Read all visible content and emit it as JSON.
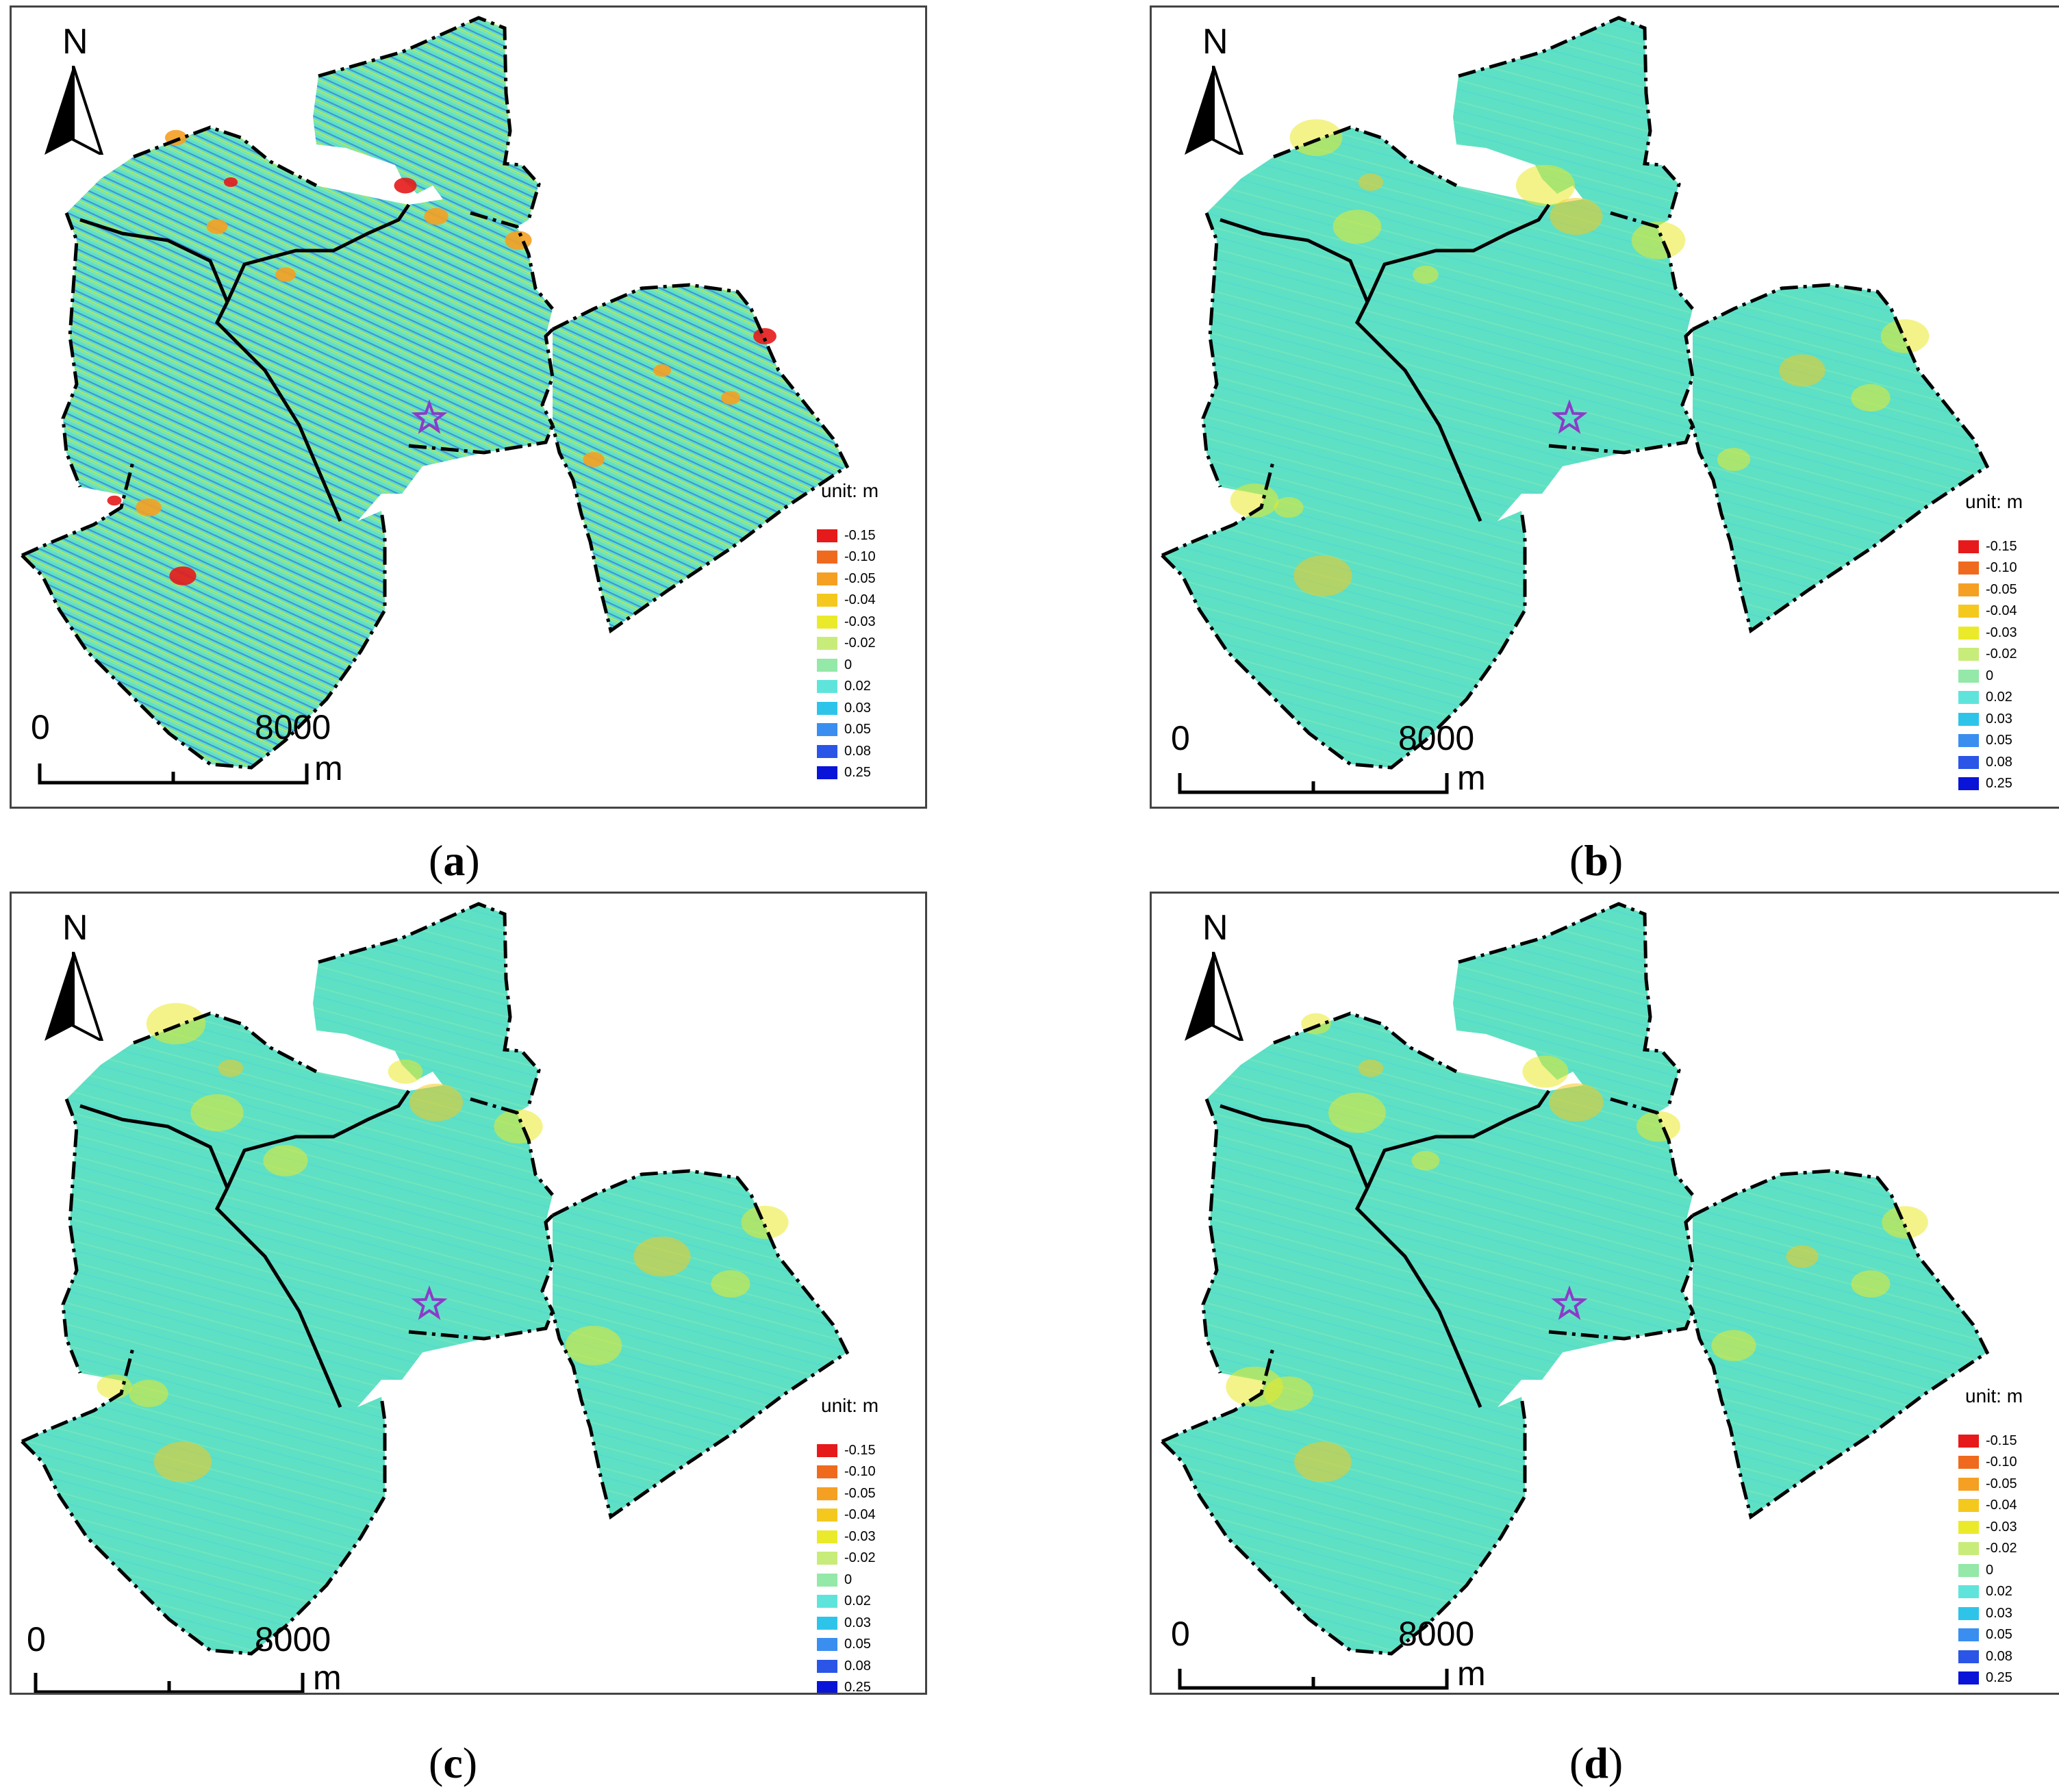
{
  "panels": [
    {
      "caption_letter": "a",
      "north_label": "N",
      "legend_title": "unit: m",
      "scale_start": "0",
      "scale_end": "8000",
      "scale_unit": "m",
      "style": "noisy"
    },
    {
      "caption_letter": "b",
      "north_label": "N",
      "legend_title": "unit: m",
      "scale_start": "0",
      "scale_end": "8000",
      "scale_unit": "m",
      "style": "smooth"
    },
    {
      "caption_letter": "c",
      "north_label": "N",
      "legend_title": "unit: m",
      "scale_start": "0",
      "scale_end": "8000",
      "scale_unit": "m",
      "style": "smooth"
    },
    {
      "caption_letter": "d",
      "north_label": "N",
      "legend_title": "unit: m",
      "scale_start": "0",
      "scale_end": "8000",
      "scale_unit": "m",
      "style": "smooth"
    }
  ],
  "legend": [
    {
      "value": "-0.15",
      "color": "#e61a1a"
    },
    {
      "value": "-0.10",
      "color": "#f06a1e"
    },
    {
      "value": "-0.05",
      "color": "#f5a022"
    },
    {
      "value": "-0.04",
      "color": "#f5c81e"
    },
    {
      "value": "-0.03",
      "color": "#eaea2a"
    },
    {
      "value": "-0.02",
      "color": "#c8ec7a"
    },
    {
      "value": "0",
      "color": "#94e8a8"
    },
    {
      "value": "0.02",
      "color": "#5fe4dc"
    },
    {
      "value": "0.03",
      "color": "#2ec4ea"
    },
    {
      "value": "0.05",
      "color": "#3a8ef0"
    },
    {
      "value": "0.08",
      "color": "#2a55e6"
    },
    {
      "value": "0.25",
      "color": "#0a14d8"
    }
  ],
  "colors": {
    "base": "#5ee0c4",
    "marker": "#8a3cc8",
    "boundary": "#000000"
  },
  "icons": {
    "north": "north-arrow-icon",
    "marker": "star-marker-icon"
  }
}
